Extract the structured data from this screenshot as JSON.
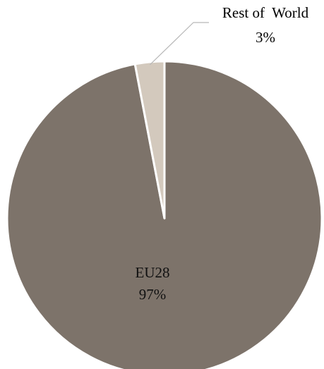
{
  "chart_data": {
    "type": "pie",
    "title": "",
    "slices": [
      {
        "label": "EU28",
        "value": 97,
        "value_label": "97%",
        "color": "#7d736a"
      },
      {
        "label": "Rest of  World",
        "value": 3,
        "value_label": "3%",
        "color": "#d3c9bd"
      }
    ],
    "start": "12 o'clock",
    "direction": "clockwise",
    "legend": "none"
  }
}
